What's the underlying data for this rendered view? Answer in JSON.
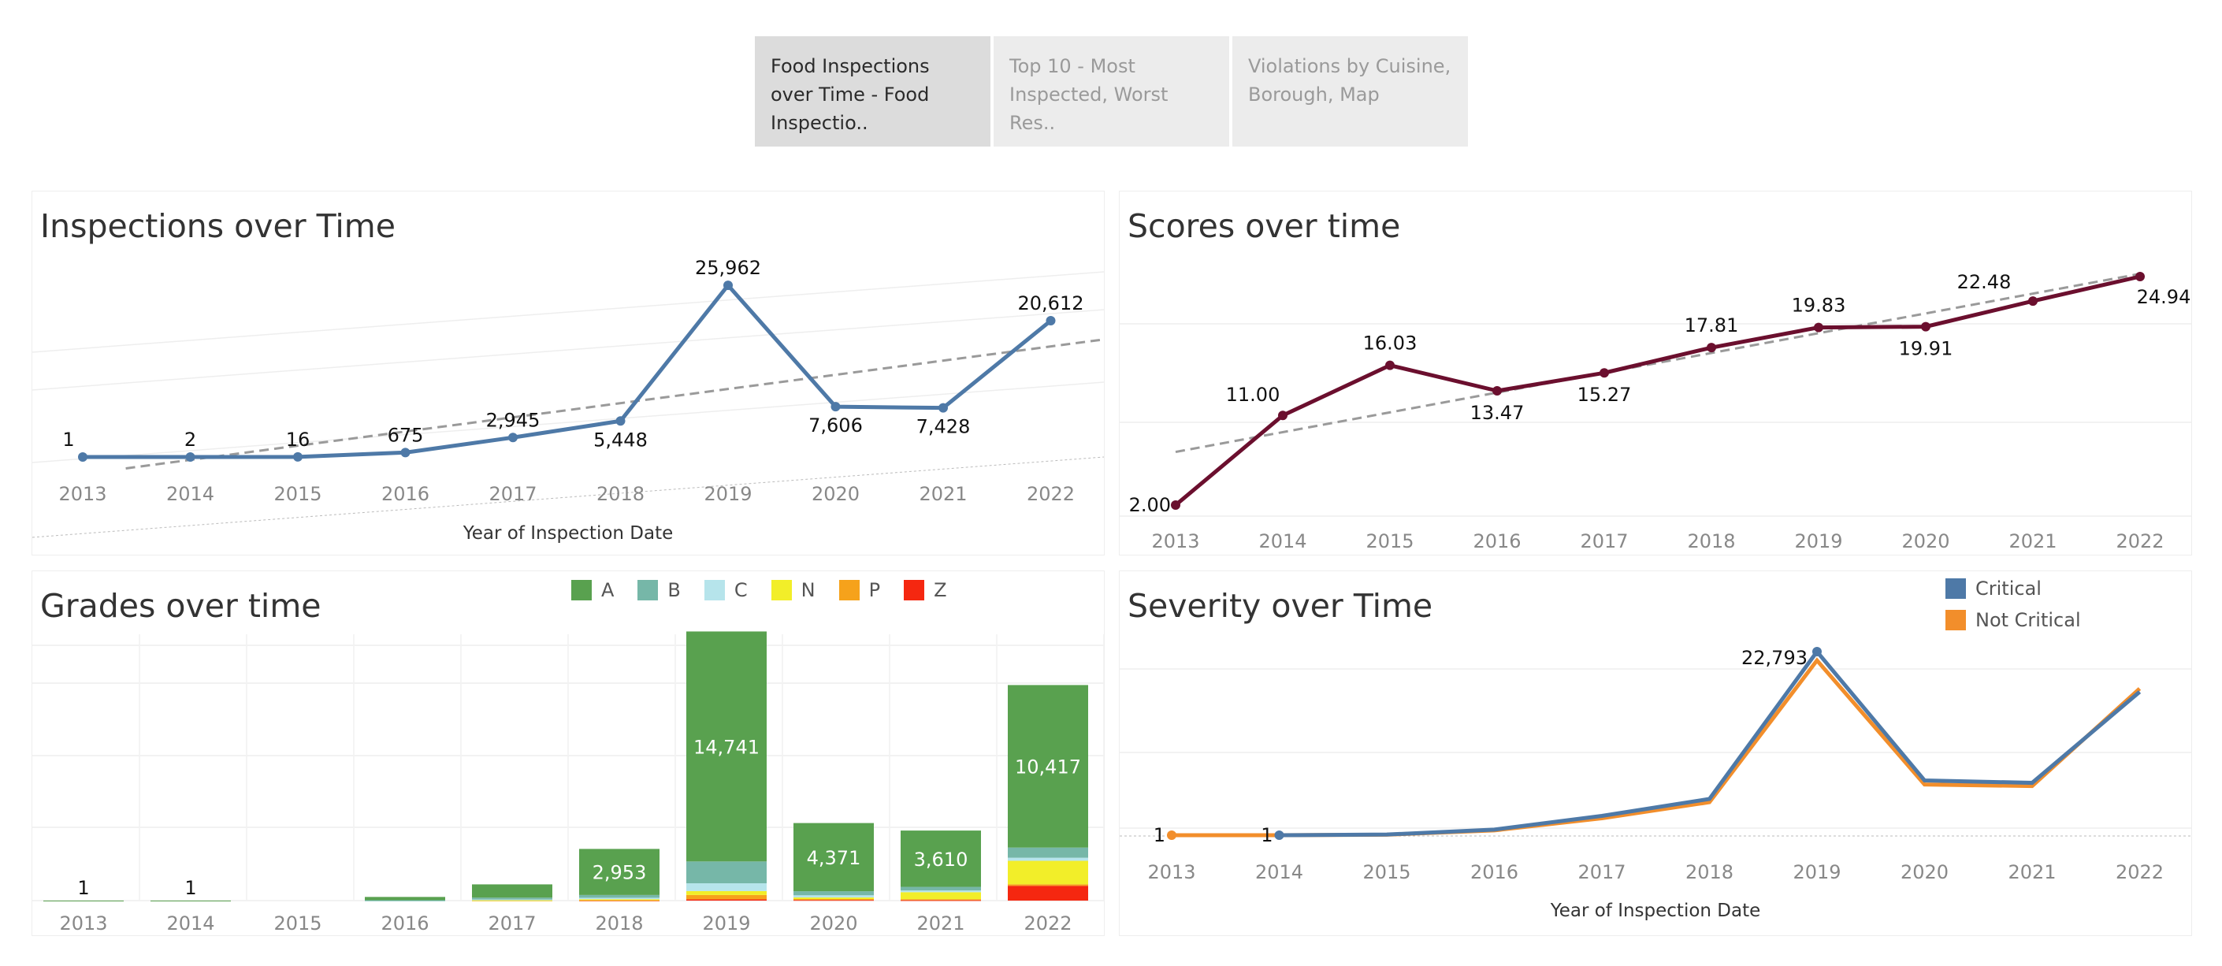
{
  "tabs": [
    {
      "label": "Food Inspections over Time - Food Inspectio..",
      "active": true
    },
    {
      "label": "Top 10 - Most Inspected, Worst Res..",
      "active": false
    },
    {
      "label": "Violations by Cuisine, Borough, Map",
      "active": false
    }
  ],
  "colors": {
    "inspections": "#4e79a7",
    "scores": "#6b0f2e",
    "trend": "#9a9a9a",
    "grades": {
      "A": "#59a14f",
      "B": "#76b7a8",
      "C": "#b6e4eb",
      "N": "#f2ee29",
      "P": "#f6a21b",
      "Z": "#f52710"
    },
    "critical": "#4e79a7",
    "not_critical": "#f28e2b"
  },
  "chart_data": [
    {
      "id": "inspections",
      "type": "line",
      "title": "Inspections over Time",
      "xlabel": "Year of Inspection Date",
      "ylabel": "",
      "x": [
        "2013",
        "2014",
        "2015",
        "2016",
        "2017",
        "2018",
        "2019",
        "2020",
        "2021",
        "2022"
      ],
      "values": [
        1,
        2,
        16,
        675,
        2945,
        5448,
        25962,
        7606,
        7428,
        20612
      ],
      "labels": [
        "1",
        "2",
        "16",
        "675",
        "2,945",
        "5,448",
        "25,962",
        "7,606",
        "7,428",
        "20,612"
      ],
      "trend_line": true,
      "ylim": [
        0,
        28000
      ],
      "grid": true
    },
    {
      "id": "scores",
      "type": "line",
      "title": "Scores over time",
      "xlabel": "",
      "ylabel": "",
      "x": [
        "2013",
        "2014",
        "2015",
        "2016",
        "2017",
        "2018",
        "2019",
        "2020",
        "2021",
        "2022"
      ],
      "values": [
        2.0,
        11.0,
        16.03,
        13.47,
        15.27,
        17.81,
        19.83,
        19.91,
        22.48,
        24.94
      ],
      "labels": [
        "2.00",
        "11.00",
        "16.03",
        "13.47",
        "15.27",
        "17.81",
        "19.83",
        "19.91",
        "22.48",
        "24.94"
      ],
      "trend_line": true,
      "ylim": [
        0,
        28
      ],
      "grid": true
    },
    {
      "id": "grades",
      "type": "bar",
      "title": "Grades over time",
      "xlabel": "",
      "ylabel": "",
      "stacked": true,
      "legend": "top",
      "categories": [
        "2013",
        "2014",
        "2015",
        "2016",
        "2017",
        "2018",
        "2019",
        "2020",
        "2021",
        "2022"
      ],
      "series": [
        {
          "name": "A",
          "values": [
            1,
            1,
            0,
            210,
            850,
            2953,
            14741,
            4371,
            3610,
            10417
          ]
        },
        {
          "name": "B",
          "values": [
            0,
            0,
            0,
            20,
            120,
            180,
            1400,
            260,
            230,
            650
          ]
        },
        {
          "name": "C",
          "values": [
            0,
            0,
            0,
            5,
            40,
            90,
            500,
            140,
            110,
            200
          ]
        },
        {
          "name": "N",
          "values": [
            0,
            0,
            0,
            0,
            20,
            60,
            250,
            100,
            450,
            1500
          ]
        },
        {
          "name": "P",
          "values": [
            0,
            0,
            0,
            0,
            10,
            20,
            280,
            60,
            60,
            100
          ]
        },
        {
          "name": "Z",
          "values": [
            0,
            0,
            0,
            0,
            0,
            10,
            80,
            40,
            30,
            950
          ]
        }
      ],
      "labels": [
        "1",
        "1",
        "",
        "",
        "",
        "2,953",
        "14,741",
        "4,371",
        "3,610",
        "10,417"
      ],
      "ylim": [
        0,
        18000
      ],
      "grid": true
    },
    {
      "id": "severity",
      "type": "line",
      "title": "Severity over Time",
      "xlabel": "Year of Inspection Date",
      "ylabel": "",
      "legend": "top-right",
      "x": [
        "2013",
        "2014",
        "2015",
        "2016",
        "2017",
        "2018",
        "2019",
        "2020",
        "2021",
        "2022"
      ],
      "series": [
        {
          "name": "Critical",
          "values": [
            null,
            1,
            80,
            700,
            2400,
            4500,
            22793,
            6800,
            6500,
            17800
          ]
        },
        {
          "name": "Not Critical",
          "values": [
            1,
            1,
            60,
            600,
            2100,
            4100,
            21700,
            6300,
            6100,
            18200
          ]
        }
      ],
      "labels": [
        {
          "series": "Not Critical",
          "x": "2013",
          "text": "1"
        },
        {
          "series": "Not Critical",
          "x": "2014",
          "text": "1"
        },
        {
          "series": "Critical",
          "x": "2019",
          "text": "22,793"
        }
      ],
      "ylim": [
        0,
        25000
      ],
      "grid": true
    }
  ]
}
